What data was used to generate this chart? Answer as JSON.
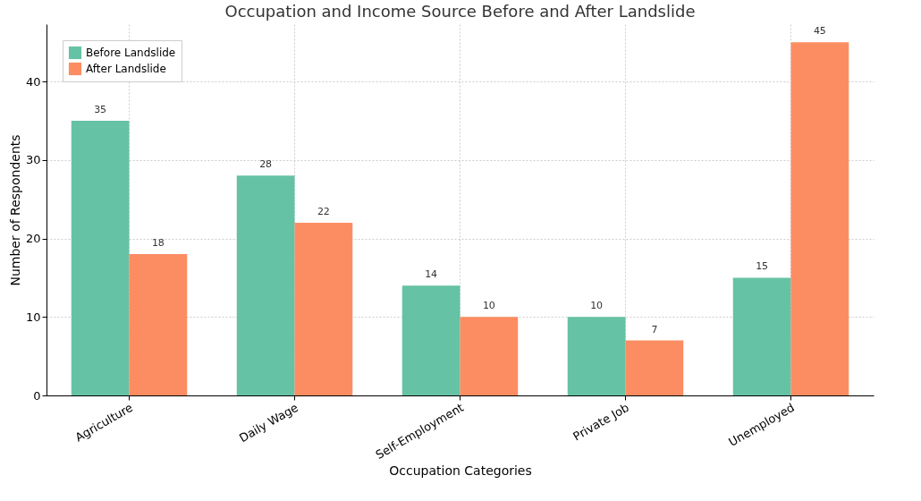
{
  "chart_data": {
    "type": "bar",
    "title": "Occupation and Income Source Before and After Landslide",
    "xlabel": "Occupation Categories",
    "ylabel": "Number of Respondents",
    "categories": [
      "Agriculture",
      "Daily Wage",
      "Self-Employment",
      "Private Job",
      "Unemployed"
    ],
    "series": [
      {
        "name": "Before Landslide",
        "color": "#66c2a5",
        "values": [
          35,
          28,
          14,
          10,
          15
        ]
      },
      {
        "name": "After Landslide",
        "color": "#fc8d62",
        "values": [
          18,
          22,
          10,
          7,
          45
        ]
      }
    ],
    "ylim": [
      0,
      47.3
    ],
    "yticks": [
      0,
      10,
      20,
      30,
      40
    ],
    "grid": true,
    "legend": "top left",
    "data_labels": true
  }
}
